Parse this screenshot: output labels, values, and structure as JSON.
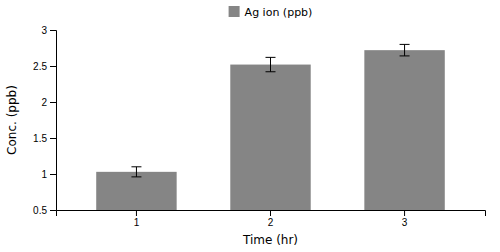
{
  "chart_data": {
    "type": "bar",
    "xlabel": "Time (hr)",
    "ylabel": "Conc. (ppb)",
    "categories": [
      "1",
      "2",
      "3"
    ],
    "series": [
      {
        "name": "Ag ion (ppb)",
        "color": "#858585",
        "values": [
          1.03,
          2.52,
          2.72
        ],
        "errors": [
          0.07,
          0.1,
          0.08
        ]
      }
    ],
    "ylim": [
      0.5,
      3.0
    ],
    "yticks": [
      0.5,
      1,
      1.5,
      2,
      2.5,
      3
    ],
    "grid": false,
    "legend": "top"
  }
}
